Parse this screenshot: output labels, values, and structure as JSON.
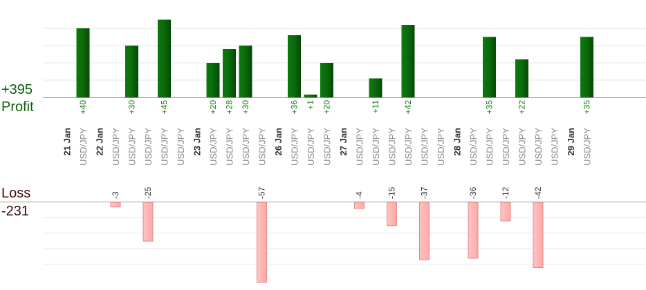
{
  "summary": {
    "profit_total": "+395",
    "profit_label": "Profit",
    "loss_label": "Loss",
    "loss_total": "-231"
  },
  "colors": {
    "profit_bar": "#0b6a0b",
    "profit_bar_dark": "#054405",
    "profit_text": "#0a7a0a",
    "loss_bar": "#ffb3b3",
    "loss_bar_border": "#e08a8a",
    "loss_text": "#333333",
    "symbol_text": "#888888",
    "date_text": "#333333",
    "grid": "#e6e6e6",
    "axis": "#999999"
  },
  "chart_data": {
    "type": "bar",
    "series": [
      {
        "name": "Profit",
        "values": [
          40,
          0,
          30,
          0,
          45,
          0,
          20,
          28,
          30,
          0,
          36,
          1,
          20,
          0,
          11,
          0,
          42,
          0,
          0,
          0,
          35,
          0,
          22,
          0,
          0,
          35
        ]
      },
      {
        "name": "Loss",
        "values": [
          0,
          -3,
          0,
          -25,
          0,
          0,
          0,
          0,
          0,
          -57,
          0,
          0,
          0,
          -4,
          0,
          -15,
          0,
          -37,
          0,
          -36,
          0,
          -12,
          0,
          -42,
          0,
          0
        ]
      }
    ],
    "trades": [
      {
        "symbol": "USD/JPY",
        "value": 40,
        "label": "+40"
      },
      {
        "symbol": "USD/JPY",
        "value": -3,
        "label": "-3"
      },
      {
        "symbol": "USD/JPY",
        "value": 30,
        "label": "+30"
      },
      {
        "symbol": "USD/JPY",
        "value": -25,
        "label": "-25"
      },
      {
        "symbol": "USD/JPY",
        "value": 45,
        "label": "+45"
      },
      {
        "symbol": "USD/JPY",
        "value": 0,
        "label": ""
      },
      {
        "symbol": "USD/JPY",
        "value": 20,
        "label": "+20"
      },
      {
        "symbol": "USD/JPY",
        "value": 28,
        "label": "+28"
      },
      {
        "symbol": "USD/JPY",
        "value": 30,
        "label": "+30"
      },
      {
        "symbol": "USD/JPY",
        "value": -57,
        "label": "-57"
      },
      {
        "symbol": "USD/JPY",
        "value": 36,
        "label": "+36"
      },
      {
        "symbol": "USD/JPY",
        "value": 1,
        "label": "+1"
      },
      {
        "symbol": "USD/JPY",
        "value": 20,
        "label": "+20"
      },
      {
        "symbol": "USD/JPY",
        "value": -4,
        "label": "-4"
      },
      {
        "symbol": "USD/JPY",
        "value": 11,
        "label": "+11"
      },
      {
        "symbol": "USD/JPY",
        "value": -15,
        "label": "-15"
      },
      {
        "symbol": "USD/JPY",
        "value": 42,
        "label": "+42"
      },
      {
        "symbol": "USD/JPY",
        "value": -37,
        "label": "-37"
      },
      {
        "symbol": "USD/JPY",
        "value": 0,
        "label": ""
      },
      {
        "symbol": "USD/JPY",
        "value": -36,
        "label": "-36"
      },
      {
        "symbol": "USD/JPY",
        "value": 35,
        "label": "+35"
      },
      {
        "symbol": "USD/JPY",
        "value": -12,
        "label": "-12"
      },
      {
        "symbol": "USD/JPY",
        "value": 22,
        "label": "+22"
      },
      {
        "symbol": "USD/JPY",
        "value": -42,
        "label": "-42"
      },
      {
        "symbol": "USD/JPY",
        "value": 0,
        "label": ""
      },
      {
        "symbol": "USD/JPY",
        "value": 35,
        "label": "+35"
      }
    ],
    "date_labels": [
      {
        "label": "21 Jan",
        "before_trade": 0
      },
      {
        "label": "22 Jan",
        "before_trade": 1
      },
      {
        "label": "23 Jan",
        "before_trade": 6
      },
      {
        "label": "26 Jan",
        "before_trade": 10
      },
      {
        "label": "27 Jan",
        "before_trade": 13
      },
      {
        "label": "28 Jan",
        "before_trade": 19
      },
      {
        "label": "29 Jan",
        "before_trade": 25
      }
    ],
    "profit_ylim": [
      0,
      40
    ],
    "loss_ylim": [
      -40,
      0
    ],
    "grid": true
  }
}
